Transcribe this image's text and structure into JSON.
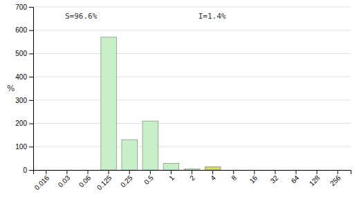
{
  "chart_data": {
    "type": "bar",
    "categories": [
      "0.016",
      "0.03",
      "0.06",
      "0.125",
      "0.25",
      "0.5",
      "1",
      "2",
      "4",
      "8",
      "16",
      "32",
      "64",
      "128",
      "256"
    ],
    "values": [
      0,
      0,
      0,
      570,
      130,
      210,
      28,
      4,
      14,
      0,
      0,
      0,
      0,
      0,
      0
    ],
    "colors": [
      "#c8f0c8",
      "#c8f0c8",
      "#c8f0c8",
      "#c8f0c8",
      "#c8f0c8",
      "#c8f0c8",
      "#c8f0c8",
      "#c8f0c8",
      "#d8d870",
      "#c8f0c8",
      "#c8f0c8",
      "#c8f0c8",
      "#c8f0c8",
      "#c8f0c8",
      "#c8f0c8"
    ],
    "ylabel": "%",
    "ylim": [
      0,
      700
    ],
    "yticks": [
      0,
      100,
      200,
      300,
      400,
      500,
      600,
      700
    ],
    "annotations": [
      "S=96.6%",
      "I=1.4%"
    ],
    "grid": true
  }
}
